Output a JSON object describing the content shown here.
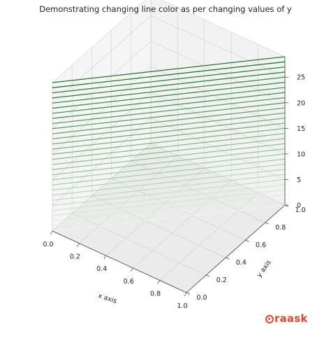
{
  "chart_data": {
    "type": "line3d",
    "title": "Demonstrating changing line color as per changing values of y",
    "xlabel": "x axis",
    "ylabel": "y axis",
    "zlabel": "",
    "x_ticks": [
      "0.0",
      "0.2",
      "0.4",
      "0.6",
      "0.8",
      "1.0"
    ],
    "y_ticks": [
      "0.0",
      "0.2",
      "0.4",
      "0.6",
      "0.8",
      "1.0"
    ],
    "z_ticks": [
      "0",
      "5",
      "10",
      "15",
      "20",
      "25"
    ],
    "xlim": [
      0,
      1
    ],
    "ylim": [
      0,
      1
    ],
    "zlim": [
      0,
      29
    ],
    "series": [
      {
        "x": [
          0,
          1
        ],
        "y": [
          0,
          1
        ],
        "z": [
          0,
          0
        ]
      },
      {
        "x": [
          0,
          1
        ],
        "y": [
          0,
          1
        ],
        "z": [
          1,
          1
        ]
      },
      {
        "x": [
          0,
          1
        ],
        "y": [
          0,
          1
        ],
        "z": [
          2,
          2
        ]
      },
      {
        "x": [
          0,
          1
        ],
        "y": [
          0,
          1
        ],
        "z": [
          3,
          3
        ]
      },
      {
        "x": [
          0,
          1
        ],
        "y": [
          0,
          1
        ],
        "z": [
          4,
          4
        ]
      },
      {
        "x": [
          0,
          1
        ],
        "y": [
          0,
          1
        ],
        "z": [
          5,
          5
        ]
      },
      {
        "x": [
          0,
          1
        ],
        "y": [
          0,
          1
        ],
        "z": [
          6,
          6
        ]
      },
      {
        "x": [
          0,
          1
        ],
        "y": [
          0,
          1
        ],
        "z": [
          7,
          7
        ]
      },
      {
        "x": [
          0,
          1
        ],
        "y": [
          0,
          1
        ],
        "z": [
          8,
          8
        ]
      },
      {
        "x": [
          0,
          1
        ],
        "y": [
          0,
          1
        ],
        "z": [
          9,
          9
        ]
      },
      {
        "x": [
          0,
          1
        ],
        "y": [
          0,
          1
        ],
        "z": [
          10,
          10
        ]
      },
      {
        "x": [
          0,
          1
        ],
        "y": [
          0,
          1
        ],
        "z": [
          11,
          11
        ]
      },
      {
        "x": [
          0,
          1
        ],
        "y": [
          0,
          1
        ],
        "z": [
          12,
          12
        ]
      },
      {
        "x": [
          0,
          1
        ],
        "y": [
          0,
          1
        ],
        "z": [
          13,
          13
        ]
      },
      {
        "x": [
          0,
          1
        ],
        "y": [
          0,
          1
        ],
        "z": [
          14,
          14
        ]
      },
      {
        "x": [
          0,
          1
        ],
        "y": [
          0,
          1
        ],
        "z": [
          15,
          15
        ]
      },
      {
        "x": [
          0,
          1
        ],
        "y": [
          0,
          1
        ],
        "z": [
          16,
          16
        ]
      },
      {
        "x": [
          0,
          1
        ],
        "y": [
          0,
          1
        ],
        "z": [
          17,
          17
        ]
      },
      {
        "x": [
          0,
          1
        ],
        "y": [
          0,
          1
        ],
        "z": [
          18,
          18
        ]
      },
      {
        "x": [
          0,
          1
        ],
        "y": [
          0,
          1
        ],
        "z": [
          19,
          19
        ]
      },
      {
        "x": [
          0,
          1
        ],
        "y": [
          0,
          1
        ],
        "z": [
          20,
          20
        ]
      },
      {
        "x": [
          0,
          1
        ],
        "y": [
          0,
          1
        ],
        "z": [
          21,
          21
        ]
      },
      {
        "x": [
          0,
          1
        ],
        "y": [
          0,
          1
        ],
        "z": [
          22,
          22
        ]
      },
      {
        "x": [
          0,
          1
        ],
        "y": [
          0,
          1
        ],
        "z": [
          23,
          23
        ]
      },
      {
        "x": [
          0,
          1
        ],
        "y": [
          0,
          1
        ],
        "z": [
          24,
          24
        ]
      },
      {
        "x": [
          0,
          1
        ],
        "y": [
          0,
          1
        ],
        "z": [
          25,
          25
        ]
      },
      {
        "x": [
          0,
          1
        ],
        "y": [
          0,
          1
        ],
        "z": [
          26,
          26
        ]
      },
      {
        "x": [
          0,
          1
        ],
        "y": [
          0,
          1
        ],
        "z": [
          27,
          27
        ]
      },
      {
        "x": [
          0,
          1
        ],
        "y": [
          0,
          1
        ],
        "z": [
          28,
          28
        ]
      },
      {
        "x": [
          0,
          1
        ],
        "y": [
          0,
          1
        ],
        "z": [
          29,
          29
        ]
      }
    ],
    "colormap": "Greens",
    "grid": true,
    "pane_color": "#f2f2f2"
  },
  "watermark": {
    "text": "raask"
  }
}
